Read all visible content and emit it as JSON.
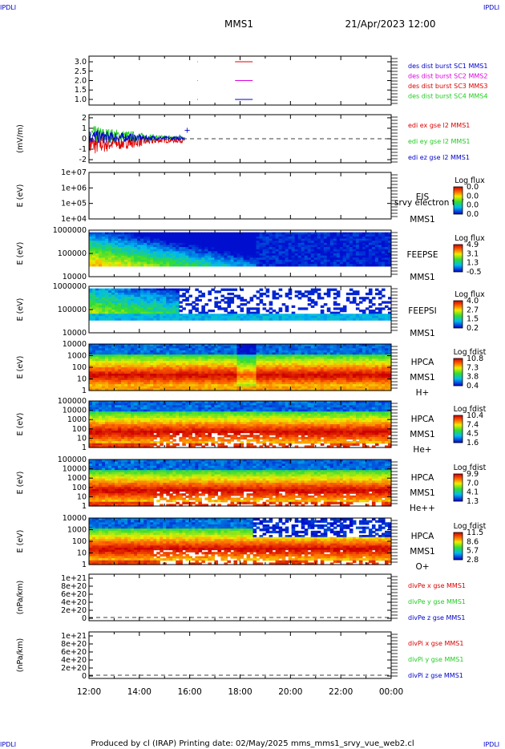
{
  "header": {
    "corner_tl": "IPDLI",
    "corner_tr": "IPDLI",
    "corner_bl": "IPDLI",
    "corner_br": "IPDLI",
    "mission": "MMS1",
    "date": "21/Apr/2023 12:00"
  },
  "footer": "Produced by cl (IRAP)   Printing date: 02/May/2025   mms_mms1_srvy_vue_web2.cl",
  "time_axis": [
    "12:00",
    "14:00",
    "16:00",
    "18:00",
    "20:00",
    "22:00",
    "00:00"
  ],
  "colors": {
    "red": "#dd0000",
    "green": "#22cc22",
    "blue": "#0000cc",
    "magenta": "#dd00dd",
    "yellow_green": "#22cc22"
  },
  "chart_data": [
    {
      "type": "line",
      "id": "des-dist",
      "ylabel": "",
      "ylim": [
        0.7,
        3.3
      ],
      "yticks": [
        "3.0",
        "2.5",
        "2.0",
        "1.5",
        "1.0"
      ],
      "ytick_values": [
        3.0,
        2.5,
        2.0,
        1.5,
        1.0
      ],
      "legend": [
        "des dist burst SC1 MMS1",
        "des dist burst SC2 MMS2",
        "des dist burst SC3 MMS3",
        "des dist burst SC4 MMS4"
      ],
      "series": [
        {
          "name": "des dist burst SC1 MMS1",
          "value": 1.0,
          "segments": [
            [
              16.3,
              16.32
            ],
            [
              17.8,
              18.5
            ]
          ],
          "color": "#0000cc"
        },
        {
          "name": "des dist burst SC2 MMS2",
          "value": 2.0,
          "segments": [
            [
              16.3,
              16.32
            ],
            [
              17.8,
              18.5
            ]
          ],
          "color": "#dd00dd"
        },
        {
          "name": "des dist burst SC3 MMS3",
          "value": 3.0,
          "segments": [
            [
              16.3,
              16.32
            ],
            [
              17.8,
              18.5
            ]
          ],
          "color": "#dd0000"
        }
      ]
    },
    {
      "type": "line",
      "id": "edi-e",
      "ylabel": "(mV/m)",
      "ylim": [
        -2.3,
        2.3
      ],
      "yticks": [
        "2",
        "1",
        "0",
        "-1",
        "-2"
      ],
      "ytick_values": [
        2,
        1,
        0,
        -1,
        -2
      ],
      "legend": [
        "edi ex gse l2 MMS1",
        "edi ey gse l2 MMS1",
        "edi ez gse l2 MMS1"
      ],
      "xrange": [
        12.0,
        15.8
      ]
    },
    {
      "type": "heatmap",
      "id": "eis",
      "ylabel": "E (eV)",
      "yticks": [
        "1e+07",
        "1e+06",
        "1e+05",
        "1e+04"
      ],
      "label_top": "EIS",
      "label_mid": "srvy electron tof",
      "label_bot": "MMS1",
      "cbar_title": "Log flux",
      "cbar_ticks": [
        "0.0",
        "0.0",
        "0.0",
        "0.0"
      ]
    },
    {
      "type": "heatmap",
      "id": "feepse",
      "ylabel": "E (eV)",
      "yticks": [
        "1000000",
        "100000",
        "10000"
      ],
      "label_top": "FEEPSE",
      "label_bot": "MMS1",
      "cbar_title": "Log flux",
      "cbar_ticks": [
        "4.9",
        "3.1",
        "1.3",
        "-0.5"
      ]
    },
    {
      "type": "heatmap",
      "id": "feepsi",
      "ylabel": "E (eV)",
      "yticks": [
        "1000000",
        "100000",
        "10000"
      ],
      "label_top": "FEEPSI",
      "label_bot": "MMS1",
      "cbar_title": "Log flux",
      "cbar_ticks": [
        "4.0",
        "2.7",
        "1.5",
        "0.2"
      ]
    },
    {
      "type": "heatmap",
      "id": "hpca-h",
      "ylabel": "E (eV)",
      "yticks": [
        "10000",
        "1000",
        "100",
        "10",
        "1"
      ],
      "label_top": "HPCA",
      "label_mid": "MMS1",
      "label_bot": "H+",
      "cbar_title": "Log fdist",
      "cbar_ticks": [
        "10.8",
        "7.3",
        "3.8",
        "0.4"
      ]
    },
    {
      "type": "heatmap",
      "id": "hpca-he",
      "ylabel": "E (eV)",
      "yticks": [
        "100000",
        "10000",
        "1000",
        "100",
        "10",
        "1"
      ],
      "label_top": "HPCA",
      "label_mid": "MMS1",
      "label_bot": "He+",
      "cbar_title": "Log fdist",
      "cbar_ticks": [
        "10.4",
        "7.4",
        "4.5",
        "1.6"
      ]
    },
    {
      "type": "heatmap",
      "id": "hpca-hepp",
      "ylabel": "E (eV)",
      "yticks": [
        "100000",
        "10000",
        "1000",
        "100",
        "10",
        "1"
      ],
      "label_top": "HPCA",
      "label_mid": "MMS1",
      "label_bot": "He++",
      "cbar_title": "Log fdist",
      "cbar_ticks": [
        "9.9",
        "7.0",
        "4.1",
        "1.3"
      ]
    },
    {
      "type": "heatmap",
      "id": "hpca-o",
      "ylabel": "E (eV)",
      "yticks": [
        "10000",
        "1000",
        "100",
        "10",
        "1"
      ],
      "label_top": "HPCA",
      "label_mid": "MMS1",
      "label_bot": "O+",
      "cbar_title": "Log fdist",
      "cbar_ticks": [
        "11.5",
        "8.6",
        "5.7",
        "2.8"
      ]
    },
    {
      "type": "line",
      "id": "divpe",
      "ylabel": "(nPa/km)",
      "yticks": [
        "1e+21",
        "8e+20",
        "6e+20",
        "4e+20",
        "2e+20",
        "0"
      ],
      "legend": [
        "divPe x gse MMS1",
        "divPe y gse MMS1",
        "divPe z gse MMS1"
      ]
    },
    {
      "type": "line",
      "id": "divpi",
      "ylabel": "(nPa/km)",
      "yticks": [
        "1e+21",
        "8e+20",
        "6e+20",
        "4e+20",
        "2e+20",
        "0"
      ],
      "legend": [
        "divPi x gse MMS1",
        "divPi y gse MMS1",
        "divPi z gse MMS1"
      ]
    }
  ]
}
